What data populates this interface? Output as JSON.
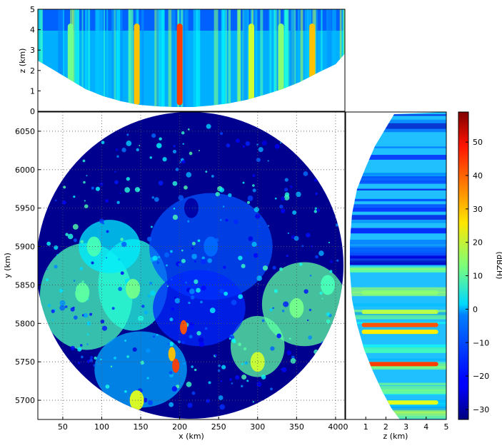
{
  "chart_data": [
    {
      "id": "main",
      "type": "heatmap",
      "title": "",
      "xlabel": "x (km)",
      "ylabel": "y (km)",
      "xlim": [
        18,
        412
      ],
      "ylim": [
        5675,
        6075
      ],
      "xticks": [
        50,
        100,
        150,
        200,
        250,
        300,
        350,
        400
      ],
      "yticks": [
        5700,
        5750,
        5800,
        5850,
        5900,
        5950,
        6000,
        6050
      ],
      "grid": true,
      "domain": {
        "shape": "circle",
        "center_x": 215,
        "center_y": 5875,
        "radius_km": 197
      },
      "cells": [
        {
          "x": 75,
          "y": 5840,
          "value": 10
        },
        {
          "x": 140,
          "y": 5845,
          "value": 12
        },
        {
          "x": 190,
          "y": 5760,
          "value": 30
        },
        {
          "x": 195,
          "y": 5745,
          "value": 42
        },
        {
          "x": 205,
          "y": 5795,
          "value": 40
        },
        {
          "x": 145,
          "y": 5700,
          "value": 22
        },
        {
          "x": 300,
          "y": 5750,
          "value": 20
        },
        {
          "x": 350,
          "y": 5820,
          "value": 12
        },
        {
          "x": 240,
          "y": 5900,
          "value": -12
        },
        {
          "x": 90,
          "y": 5900,
          "value": 8
        },
        {
          "x": 390,
          "y": 5850,
          "value": 8
        },
        {
          "x": 215,
          "y": 5950,
          "value": -30
        }
      ]
    },
    {
      "id": "top",
      "type": "heatmap",
      "xlabel": "",
      "ylabel": "z (km)",
      "xlim": [
        18,
        412
      ],
      "ylim": [
        0,
        5
      ],
      "yticks": [
        0,
        1,
        2,
        3,
        4,
        5
      ],
      "columns": [
        {
          "x": 145,
          "value": 30
        },
        {
          "x": 200,
          "value": 42
        },
        {
          "x": 292,
          "value": 20
        },
        {
          "x": 370,
          "value": 30
        },
        {
          "x": 60,
          "value": 12
        },
        {
          "x": 330,
          "value": 14
        }
      ]
    },
    {
      "id": "right",
      "type": "heatmap",
      "xlabel": "z (km)",
      "ylabel": "",
      "xlim": [
        0,
        5
      ],
      "ylim": [
        5675,
        6075
      ],
      "xticks": [
        0,
        1,
        2,
        3,
        4,
        5
      ],
      "rows": [
        {
          "y": 5798,
          "value": 40
        },
        {
          "y": 5789,
          "value": 26
        },
        {
          "y": 5747,
          "value": 42
        },
        {
          "y": 5697,
          "value": 22
        },
        {
          "y": 5840,
          "value": 14
        },
        {
          "y": 5815,
          "value": 18
        }
      ]
    }
  ],
  "colorbar": {
    "label": "(dBZH)",
    "min": -33,
    "max": 59,
    "ticks": [
      -30,
      -20,
      -10,
      0,
      10,
      20,
      30,
      40,
      50
    ],
    "colormap": "jet"
  }
}
